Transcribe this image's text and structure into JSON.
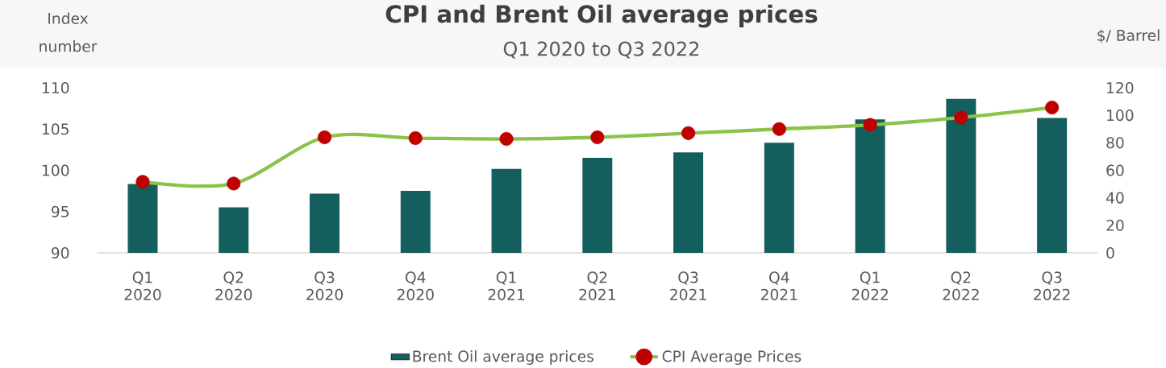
{
  "chart_data": {
    "type": "bar",
    "title": "CPI and Brent Oil average prices",
    "subtitle": "Q1 2020 to Q3 2022",
    "ylabel": "Index number",
    "y2label": "$/ Barrel",
    "categories": [
      "Q1 2020",
      "Q2 2020",
      "Q3 2020",
      "Q4 2020",
      "Q1 2021",
      "Q2 2021",
      "Q3 2021",
      "Q4 2021",
      "Q1 2022",
      "Q2 2022",
      "Q3 2022"
    ],
    "series": [
      {
        "name": "Brent Oil average prices",
        "color": "#155e5e",
        "axis": "y2",
        "values": [
          50,
          33,
          43,
          45,
          61,
          69,
          73,
          80,
          97,
          112,
          98
        ]
      },
      {
        "name": "CPI Average Prices",
        "type": "line",
        "color": "#8bc34a",
        "colors": [
          "#c00000",
          "#c00000",
          "#c00000",
          "#c00000",
          "#c00000",
          "#c00000",
          "#c00000",
          "#c00000",
          "#c00000",
          "#c00000",
          "#c00000"
        ],
        "values": [
          98.6,
          98.4,
          104.0,
          103.9,
          103.8,
          104.0,
          104.5,
          105.0,
          105.5,
          106.4,
          107.6
        ]
      }
    ],
    "ylim": [
      90,
      110
    ],
    "yticks": [
      90,
      95,
      100,
      105,
      110
    ],
    "y2lim": [
      0,
      120
    ],
    "y2ticks": [
      0,
      20,
      40,
      60,
      80,
      100,
      120
    ],
    "legend": "bottom",
    "marker": "circle"
  }
}
